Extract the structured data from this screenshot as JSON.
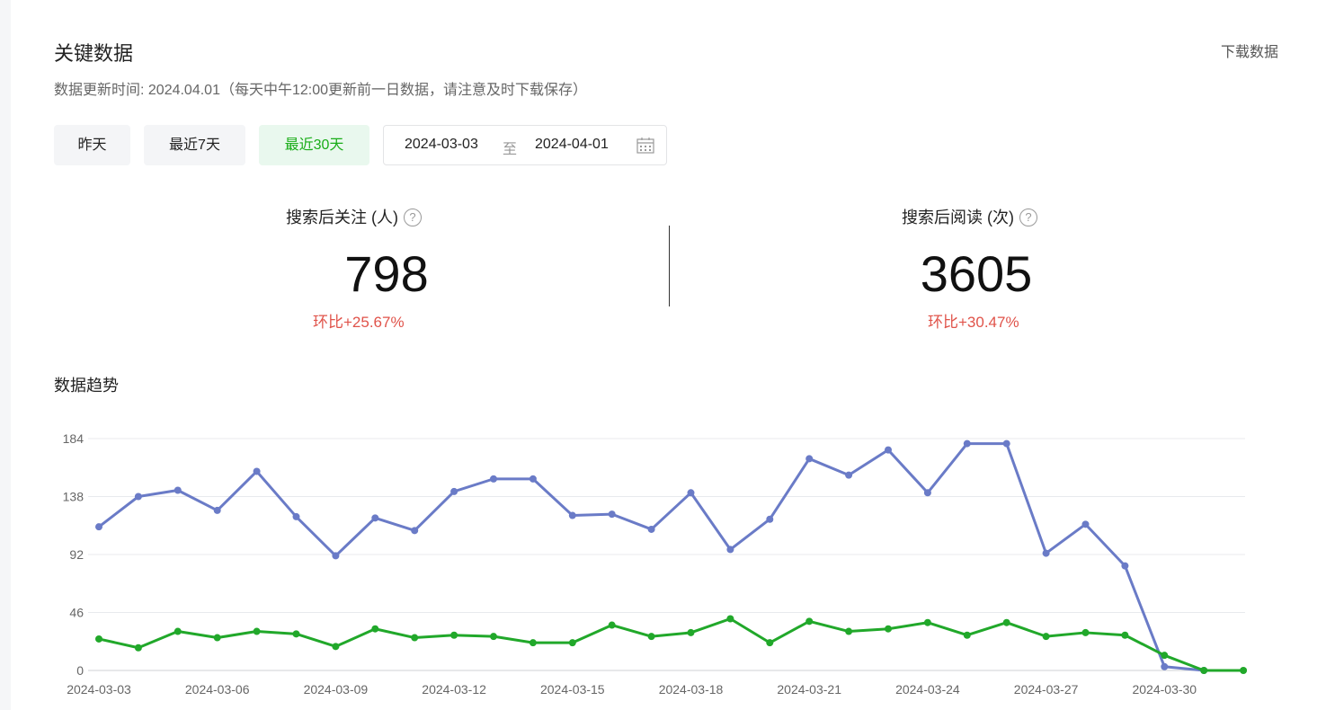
{
  "header": {
    "title": "关键数据",
    "download_label": "下载数据",
    "update_info": "数据更新时间: 2024.04.01（每天中午12:00更新前一日数据，请注意及时下载保存）"
  },
  "filters": {
    "buttons": [
      {
        "label": "昨天",
        "active": false
      },
      {
        "label": "最近7天",
        "active": false
      },
      {
        "label": "最近30天",
        "active": true
      }
    ],
    "date_start": "2024-03-03",
    "date_separator": "至",
    "date_end": "2024-04-01",
    "active_color": "#1aad19"
  },
  "metrics": [
    {
      "label": "搜索后关注 (人)",
      "value": "798",
      "change": "环比+25.67%"
    },
    {
      "label": "搜索后阅读 (次)",
      "value": "3605",
      "change": "环比+30.47%"
    }
  ],
  "trend": {
    "title": "数据趋势"
  },
  "chart_data": {
    "type": "line",
    "x": [
      "2024-03-03",
      "2024-03-04",
      "2024-03-05",
      "2024-03-06",
      "2024-03-07",
      "2024-03-08",
      "2024-03-09",
      "2024-03-10",
      "2024-03-11",
      "2024-03-12",
      "2024-03-13",
      "2024-03-14",
      "2024-03-15",
      "2024-03-16",
      "2024-03-17",
      "2024-03-18",
      "2024-03-19",
      "2024-03-20",
      "2024-03-21",
      "2024-03-22",
      "2024-03-23",
      "2024-03-24",
      "2024-03-25",
      "2024-03-26",
      "2024-03-27",
      "2024-03-28",
      "2024-03-29",
      "2024-03-30",
      "2024-03-31",
      "2024-04-01"
    ],
    "x_tick_labels": [
      "2024-03-03",
      "2024-03-06",
      "2024-03-09",
      "2024-03-12",
      "2024-03-15",
      "2024-03-18",
      "2024-03-21",
      "2024-03-24",
      "2024-03-27",
      "2024-03-30"
    ],
    "y_ticks": [
      0,
      46,
      92,
      138,
      184
    ],
    "ylim": [
      0,
      184
    ],
    "grid": true,
    "series": [
      {
        "color": "#6a7bc7",
        "values": [
          114,
          138,
          143,
          127,
          158,
          122,
          91,
          121,
          111,
          142,
          152,
          152,
          123,
          124,
          112,
          141,
          96,
          120,
          168,
          155,
          175,
          141,
          180,
          180,
          93,
          116,
          83,
          3,
          0,
          null
        ]
      },
      {
        "color": "#21a82a",
        "values": [
          25,
          18,
          31,
          26,
          31,
          29,
          19,
          33,
          26,
          28,
          27,
          22,
          22,
          36,
          27,
          30,
          41,
          22,
          39,
          31,
          33,
          38,
          28,
          38,
          27,
          30,
          28,
          12,
          0,
          0
        ]
      }
    ]
  }
}
